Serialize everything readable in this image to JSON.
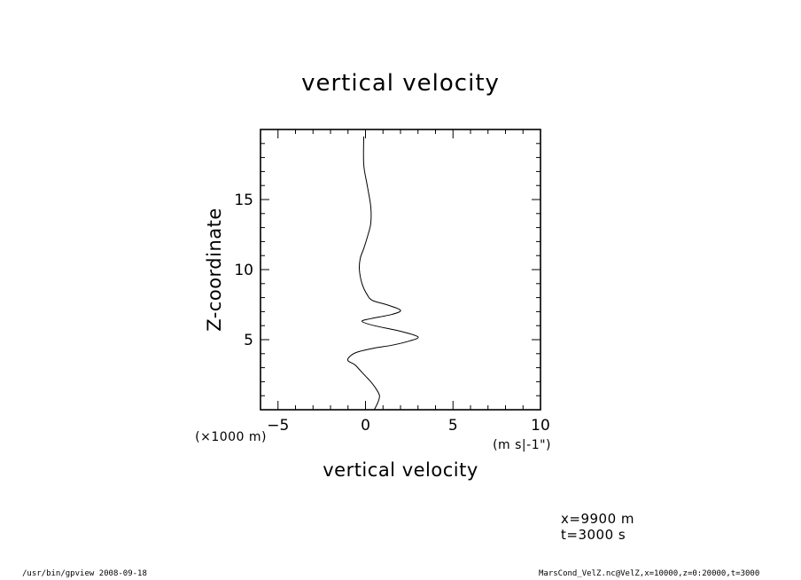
{
  "chart_data": {
    "type": "line",
    "title": "vertical velocity",
    "xlabel": "vertical velocity",
    "ylabel": "Z-coordinate",
    "x_units": "(m s|-1\")",
    "y_units": "(×1000 m)",
    "xlim": [
      -6,
      10
    ],
    "ylim": [
      0,
      20
    ],
    "x_ticks": [
      -5,
      0,
      5,
      10
    ],
    "y_ticks": [
      5,
      10,
      15
    ],
    "grid": false,
    "series": [
      {
        "x": [
          0.5,
          0.7,
          0.8,
          0.6,
          0.3,
          0.0,
          -0.3,
          -0.6,
          -1.0,
          -0.9,
          -0.5,
          0.5,
          1.5,
          2.5,
          3.0,
          2.0,
          0.5,
          -0.2,
          0.3,
          1.5,
          2.0,
          1.2,
          0.4,
          0.1,
          -0.2,
          -0.35,
          -0.3,
          -0.1,
          0.1,
          0.3,
          0.3,
          0.1,
          -0.1,
          -0.1
        ],
        "y": [
          0.0,
          0.5,
          1.0,
          1.5,
          2.0,
          2.4,
          2.8,
          3.2,
          3.5,
          3.8,
          4.1,
          4.4,
          4.6,
          4.9,
          5.2,
          5.6,
          6.0,
          6.3,
          6.5,
          6.8,
          7.1,
          7.5,
          7.8,
          8.2,
          9.0,
          10.0,
          10.8,
          11.5,
          12.3,
          13.3,
          14.5,
          16.0,
          17.5,
          19.5
        ]
      }
    ]
  },
  "info": {
    "line1": "x=9900  m",
    "line2": "t=3000  s"
  },
  "footer": {
    "left": "/usr/bin/gpview   2008-09-18",
    "right": "MarsCond_VelZ.nc@VelZ,x=10000,z=0:20000,t=3000"
  }
}
